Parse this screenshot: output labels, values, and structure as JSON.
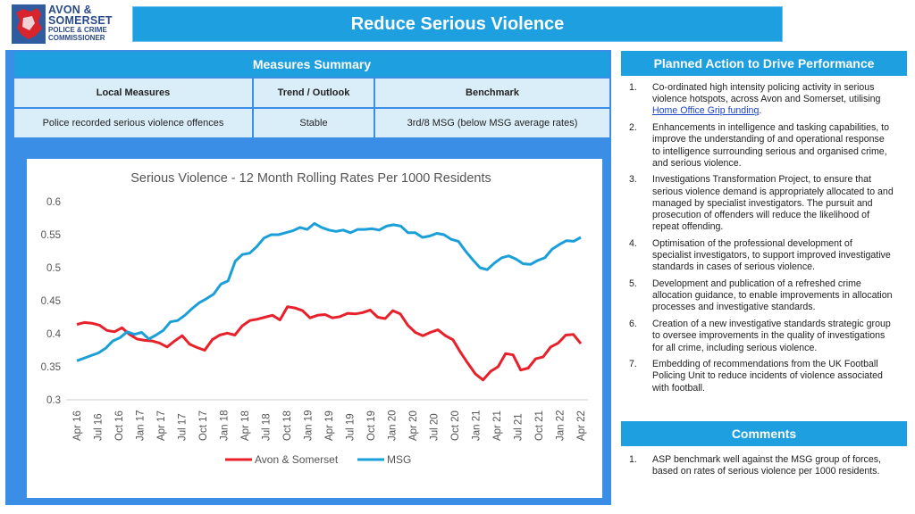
{
  "logo": {
    "lines": [
      "AVON &",
      "SOMERSET",
      "POLICE & CRIME",
      "COMMISSIONER"
    ]
  },
  "page": {
    "title": "Reduce Serious Violence"
  },
  "measures": {
    "header": "Measures Summary",
    "columns": [
      "Local Measures",
      "Trend / Outlook",
      "Benchmark"
    ],
    "rows": [
      [
        "Police recorded serious violence offences",
        "Stable",
        "3rd/8 MSG (below MSG average rates)"
      ]
    ]
  },
  "planned_action": {
    "header": "Planned Action to Drive Performance",
    "items": [
      {
        "num": "1.",
        "text": "Co-ordinated high intensity policing activity in serious violence hotspots, across Avon and Somerset, utilising ",
        "link": "Home Office Grip funding",
        "after": "."
      },
      {
        "num": "2.",
        "text": "Enhancements in intelligence and tasking capabilities, to improve the understanding of and operational response to intelligence surrounding serious and organised crime, and serious violence."
      },
      {
        "num": "3.",
        "text": "Investigations Transformation Project, to ensure that serious violence demand is appropriately allocated to and managed by specialist investigators. The pursuit and prosecution of offenders will reduce the likelihood of repeat offending."
      },
      {
        "num": "4.",
        "text": "Optimisation of the professional development of specialist investigators, to support improved investigative standards in cases of serious violence."
      },
      {
        "num": "5.",
        "text": "Development and publication of a refreshed crime allocation guidance, to enable improvements in allocation processes and investigative standards."
      },
      {
        "num": "6.",
        "text": "Creation of a new investigative standards strategic group to oversee improvements in the quality of investigations for all crime, including serious violence."
      },
      {
        "num": "7.",
        "text": "Embedding of recommendations from the UK Football Policing Unit to reduce incidents of violence associated with football."
      }
    ]
  },
  "comments": {
    "header": "Comments",
    "items": [
      {
        "num": "1.",
        "text": "ASP benchmark well against the MSG group of forces, based on rates of serious violence per 1000 residents."
      }
    ]
  },
  "chart_data": {
    "type": "line",
    "title": "Serious Violence - 12 Month Rolling Rates Per 1000 Residents",
    "ylim": [
      0.3,
      0.6
    ],
    "yticks": [
      "0.6",
      "0.55",
      "0.5",
      "0.45",
      "0.4",
      "0.35",
      "0.3"
    ],
    "ytick_values": [
      0.6,
      0.55,
      0.5,
      0.45,
      0.4,
      0.35,
      0.3
    ],
    "tick_labels": [
      "Apr 16",
      "Jul 16",
      "Oct 16",
      "Jan 17",
      "Apr 17",
      "Jul 17",
      "Oct 17",
      "Jan 18",
      "Apr 18",
      "Jul 18",
      "Oct 18",
      "Jan 19",
      "Apr 19",
      "Jul 19",
      "Oct 19",
      "Jan 20",
      "Apr 20",
      "Jul 20",
      "Oct 20",
      "Jan 21",
      "Apr 21",
      "Jul 21",
      "Oct 21",
      "Jan 22",
      "Apr 22"
    ],
    "gridlines": false,
    "legend_position": "bottom",
    "series": [
      {
        "name": "Avon & Somerset",
        "color": "#e8202a",
        "values": [
          0.414,
          0.417,
          0.416,
          0.413,
          0.405,
          0.403,
          0.409,
          0.399,
          0.392,
          0.39,
          0.389,
          0.386,
          0.38,
          0.389,
          0.397,
          0.384,
          0.379,
          0.375,
          0.391,
          0.398,
          0.401,
          0.398,
          0.412,
          0.42,
          0.422,
          0.425,
          0.428,
          0.421,
          0.441,
          0.439,
          0.435,
          0.424,
          0.428,
          0.429,
          0.424,
          0.426,
          0.431,
          0.43,
          0.432,
          0.436,
          0.425,
          0.423,
          0.435,
          0.43,
          0.413,
          0.402,
          0.397,
          0.402,
          0.406,
          0.397,
          0.391,
          0.372,
          0.355,
          0.339,
          0.33,
          0.343,
          0.35,
          0.37,
          0.368,
          0.345,
          0.348,
          0.362,
          0.365,
          0.38,
          0.386,
          0.398,
          0.399,
          0.385
        ]
      },
      {
        "name": "MSG",
        "color": "#1a9fd8",
        "values": [
          0.359,
          0.363,
          0.367,
          0.371,
          0.378,
          0.389,
          0.394,
          0.403,
          0.399,
          0.402,
          0.392,
          0.398,
          0.405,
          0.418,
          0.42,
          0.428,
          0.438,
          0.447,
          0.453,
          0.46,
          0.475,
          0.48,
          0.51,
          0.52,
          0.522,
          0.532,
          0.545,
          0.55,
          0.55,
          0.553,
          0.556,
          0.561,
          0.558,
          0.567,
          0.561,
          0.557,
          0.555,
          0.557,
          0.553,
          0.558,
          0.558,
          0.559,
          0.557,
          0.563,
          0.565,
          0.563,
          0.553,
          0.553,
          0.546,
          0.548,
          0.552,
          0.55,
          0.543,
          0.54,
          0.525,
          0.512,
          0.5,
          0.497,
          0.507,
          0.515,
          0.518,
          0.513,
          0.506,
          0.505,
          0.511,
          0.515,
          0.528,
          0.535,
          0.541,
          0.54,
          0.546
        ]
      }
    ]
  }
}
